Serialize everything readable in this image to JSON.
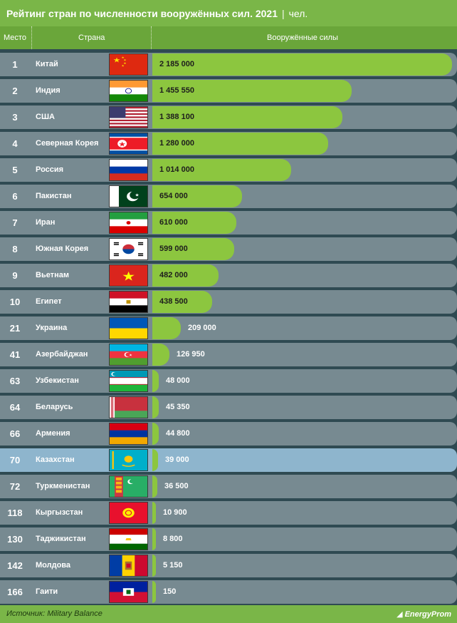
{
  "title": "Рейтинг стран по численности вооружённых сил. 2021",
  "title_sep": "|",
  "unit": "чел.",
  "headers": {
    "rank": "Место",
    "country": "Страна",
    "value": "Вооружённые силы"
  },
  "source": "Источник: Military Balance",
  "logo": {
    "text": "EnergyProm"
  },
  "colors": {
    "bar": "#8cc63f",
    "row": "#778a91",
    "highlight_row": "#8eb5cd",
    "header": "#7ab648",
    "background": "#2f4a52"
  },
  "chart_data": {
    "type": "bar",
    "orientation": "horizontal",
    "title": "Рейтинг стран по численности вооружённых сил. 2021",
    "unit": "чел.",
    "max": 2185000,
    "rows": [
      {
        "rank": "1",
        "country": "Китай",
        "value": 2185000,
        "label": "2 185 000",
        "flag": "china-flag-icon"
      },
      {
        "rank": "2",
        "country": "Индия",
        "value": 1455550,
        "label": "1 455 550",
        "flag": "india-flag-icon"
      },
      {
        "rank": "3",
        "country": "США",
        "value": 1388100,
        "label": "1 388 100",
        "flag": "usa-flag-icon"
      },
      {
        "rank": "4",
        "country": "Северная Корея",
        "value": 1280000,
        "label": "1 280 000",
        "flag": "north-korea-flag-icon"
      },
      {
        "rank": "5",
        "country": "Россия",
        "value": 1014000,
        "label": "1 014 000",
        "flag": "russia-flag-icon"
      },
      {
        "rank": "6",
        "country": "Пакистан",
        "value": 654000,
        "label": "654 000",
        "flag": "pakistan-flag-icon"
      },
      {
        "rank": "7",
        "country": "Иран",
        "value": 610000,
        "label": "610 000",
        "flag": "iran-flag-icon"
      },
      {
        "rank": "8",
        "country": "Южная Корея",
        "value": 599000,
        "label": "599 000",
        "flag": "south-korea-flag-icon"
      },
      {
        "rank": "9",
        "country": "Вьетнам",
        "value": 482000,
        "label": "482 000",
        "flag": "vietnam-flag-icon"
      },
      {
        "rank": "10",
        "country": "Египет",
        "value": 438500,
        "label": "438 500",
        "flag": "egypt-flag-icon"
      },
      {
        "rank": "21",
        "country": "Украина",
        "value": 209000,
        "label": "209 000",
        "flag": "ukraine-flag-icon"
      },
      {
        "rank": "41",
        "country": "Азербайджан",
        "value": 126950,
        "label": "126 950",
        "flag": "azerbaijan-flag-icon"
      },
      {
        "rank": "63",
        "country": "Узбекистан",
        "value": 48000,
        "label": "48 000",
        "flag": "uzbekistan-flag-icon"
      },
      {
        "rank": "64",
        "country": "Беларусь",
        "value": 45350,
        "label": "45 350",
        "flag": "belarus-flag-icon"
      },
      {
        "rank": "66",
        "country": "Армения",
        "value": 44800,
        "label": "44 800",
        "flag": "armenia-flag-icon"
      },
      {
        "rank": "70",
        "country": "Казахстан",
        "value": 39000,
        "label": "39 000",
        "flag": "kazakhstan-flag-icon",
        "highlight": true
      },
      {
        "rank": "72",
        "country": "Туркменистан",
        "value": 36500,
        "label": "36 500",
        "flag": "turkmenistan-flag-icon"
      },
      {
        "rank": "118",
        "country": "Кыргызстан",
        "value": 10900,
        "label": "10 900",
        "flag": "kyrgyzstan-flag-icon"
      },
      {
        "rank": "130",
        "country": "Таджикистан",
        "value": 8800,
        "label": "8 800",
        "flag": "tajikistan-flag-icon"
      },
      {
        "rank": "142",
        "country": "Молдова",
        "value": 5150,
        "label": "5 150",
        "flag": "moldova-flag-icon"
      },
      {
        "rank": "166",
        "country": "Гаити",
        "value": 150,
        "label": "150",
        "flag": "haiti-flag-icon"
      }
    ]
  }
}
